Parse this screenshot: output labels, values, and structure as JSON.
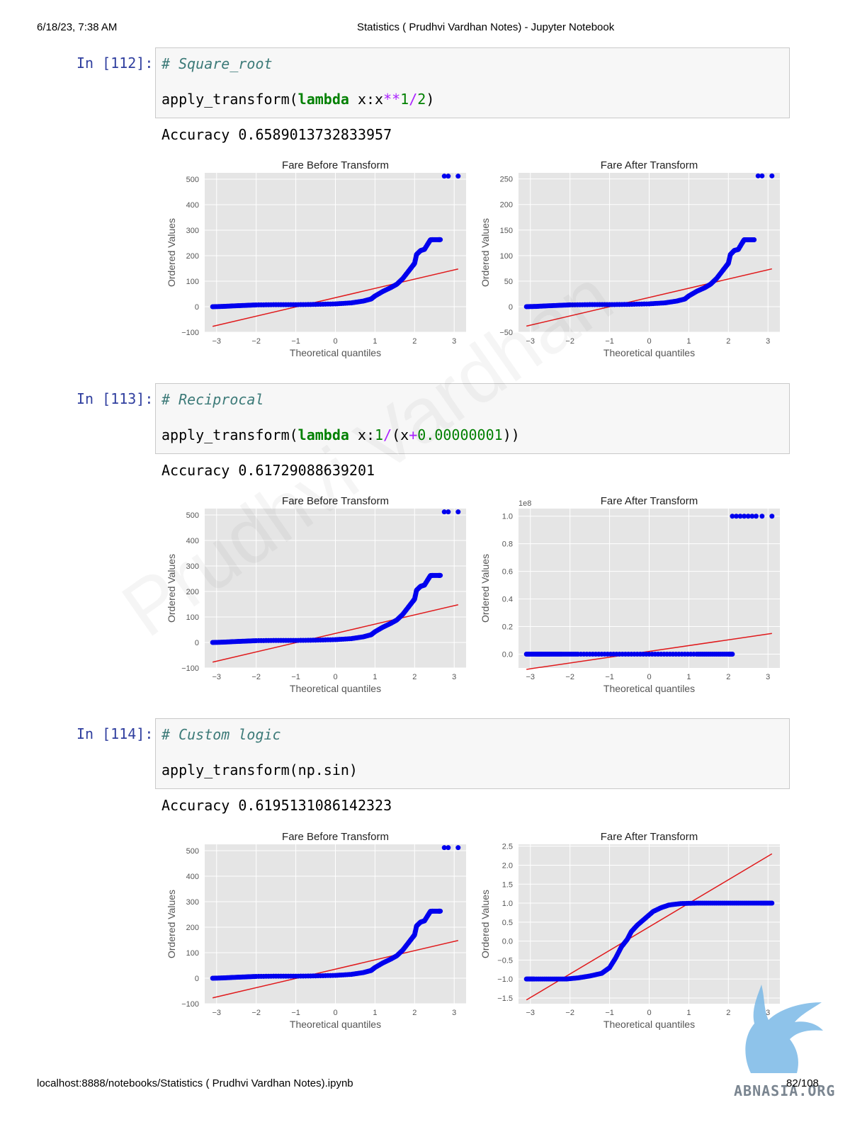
{
  "header": {
    "timestamp": "6/18/23, 7:38 AM",
    "title": "Statistics ( Prudhvi Vardhan Notes) - Jupyter Notebook"
  },
  "footer": {
    "url": "localhost:8888/notebooks/Statistics ( Prudhvi Vardhan Notes).ipynb",
    "page": "82/108"
  },
  "watermark": "Prudhvi Vardhan",
  "logo_text": "ABNASIA.ORG",
  "colors": {
    "points": "#0000ee",
    "fit_line": "#e0191b",
    "plot_bg": "#e5e5e5",
    "prompt": "#303f9f"
  },
  "cells": [
    {
      "prompt": "In [112]:",
      "comment": "# Square_root",
      "code": {
        "fn": "apply_transform(",
        "kw": "lambda",
        "a": " x:x",
        "op1": "**",
        "n1": "1",
        "op2": "/",
        "n2": "2",
        "end": ")"
      },
      "output": "Accuracy 0.6589013732833957"
    },
    {
      "prompt": "In [113]:",
      "comment": "# Reciprocal",
      "code": {
        "fn": "apply_transform(",
        "kw": "lambda",
        "a": " x:",
        "n1": "1",
        "op1": "/",
        "b": "(x",
        "op2": "+",
        "n2": "0.00000001",
        "end": "))"
      },
      "output": "Accuracy 0.61729088639201"
    },
    {
      "prompt": "In [114]:",
      "comment": "# Custom logic",
      "code": {
        "fn": "apply_transform(np.sin)"
      },
      "output": "Accuracy 0.6195131086142323"
    }
  ],
  "chart_data": [
    {
      "type": "scatter",
      "title": "Fare Before Transform",
      "xlabel": "Theoretical quantiles",
      "ylabel": "Ordered Values",
      "xlim": [
        -3.3,
        3.3
      ],
      "ylim": [
        -100,
        525
      ],
      "xticks": [
        -3,
        -2,
        -1,
        0,
        1,
        2,
        3
      ],
      "yticks": [
        -100,
        0,
        100,
        200,
        300,
        400,
        500
      ],
      "ytick_labels": [
        "−100",
        "0",
        "100",
        "200",
        "300",
        "400",
        "500"
      ],
      "offset_label": "",
      "curve": [
        [
          -3.1,
          0
        ],
        [
          -2.85,
          1
        ],
        [
          -2.6,
          3
        ],
        [
          -2.3,
          5
        ],
        [
          -2,
          7
        ],
        [
          -1.5,
          8
        ],
        [
          -1,
          8
        ],
        [
          -0.5,
          9
        ],
        [
          0,
          11
        ],
        [
          0.4,
          15
        ],
        [
          0.7,
          22
        ],
        [
          0.9,
          30
        ],
        [
          1,
          42
        ],
        [
          1.2,
          60
        ],
        [
          1.4,
          75
        ],
        [
          1.55,
          88
        ],
        [
          1.7,
          110
        ],
        [
          1.85,
          140
        ],
        [
          1.95,
          160
        ],
        [
          2,
          170
        ],
        [
          2.05,
          205
        ],
        [
          2.15,
          220
        ],
        [
          2.25,
          225
        ],
        [
          2.35,
          250
        ],
        [
          2.4,
          262
        ],
        [
          2.45,
          263
        ],
        [
          2.6,
          263
        ],
        [
          2.65,
          263
        ]
      ],
      "outliers": [
        [
          2.75,
          512
        ],
        [
          2.85,
          512
        ],
        [
          3.1,
          512
        ]
      ],
      "fit_line": [
        [
          -3.1,
          -77
        ],
        [
          3.1,
          148
        ]
      ]
    },
    {
      "type": "scatter",
      "title": "Fare After Transform",
      "xlabel": "Theoretical quantiles",
      "ylabel": "Ordered Values",
      "xlim": [
        -3.3,
        3.3
      ],
      "ylim": [
        -50,
        262
      ],
      "xticks": [
        -3,
        -2,
        -1,
        0,
        1,
        2,
        3
      ],
      "yticks": [
        -50,
        0,
        50,
        100,
        150,
        200,
        250
      ],
      "ytick_labels": [
        "−50",
        "0",
        "50",
        "100",
        "150",
        "200",
        "250"
      ],
      "offset_label": "",
      "curve": [
        [
          -3.1,
          0
        ],
        [
          -2.85,
          0.5
        ],
        [
          -2.6,
          1.5
        ],
        [
          -2.3,
          2.5
        ],
        [
          -2,
          3.5
        ],
        [
          -1.5,
          4
        ],
        [
          -1,
          4
        ],
        [
          -0.5,
          4.5
        ],
        [
          0,
          5.5
        ],
        [
          0.4,
          7.5
        ],
        [
          0.7,
          11
        ],
        [
          0.9,
          15
        ],
        [
          1,
          21
        ],
        [
          1.2,
          30
        ],
        [
          1.4,
          37
        ],
        [
          1.55,
          44
        ],
        [
          1.7,
          55
        ],
        [
          1.85,
          70
        ],
        [
          1.95,
          80
        ],
        [
          2,
          85
        ],
        [
          2.05,
          102
        ],
        [
          2.15,
          110
        ],
        [
          2.25,
          112
        ],
        [
          2.35,
          125
        ],
        [
          2.4,
          131
        ],
        [
          2.45,
          131
        ],
        [
          2.6,
          131
        ],
        [
          2.65,
          131
        ]
      ],
      "outliers": [
        [
          2.75,
          256
        ],
        [
          2.85,
          256
        ],
        [
          3.1,
          256
        ]
      ],
      "fit_line": [
        [
          -3.1,
          -38
        ],
        [
          3.1,
          74
        ]
      ]
    },
    {
      "type": "scatter",
      "title": "Fare Before Transform",
      "xlabel": "Theoretical quantiles",
      "ylabel": "Ordered Values",
      "xlim": [
        -3.3,
        3.3
      ],
      "ylim": [
        -100,
        525
      ],
      "xticks": [
        -3,
        -2,
        -1,
        0,
        1,
        2,
        3
      ],
      "yticks": [
        -100,
        0,
        100,
        200,
        300,
        400,
        500
      ],
      "ytick_labels": [
        "−100",
        "0",
        "100",
        "200",
        "300",
        "400",
        "500"
      ],
      "offset_label": "",
      "curve": [
        [
          -3.1,
          0
        ],
        [
          -2.85,
          1
        ],
        [
          -2.6,
          3
        ],
        [
          -2.3,
          5
        ],
        [
          -2,
          7
        ],
        [
          -1.5,
          8
        ],
        [
          -1,
          8
        ],
        [
          -0.5,
          9
        ],
        [
          0,
          11
        ],
        [
          0.4,
          15
        ],
        [
          0.7,
          22
        ],
        [
          0.9,
          30
        ],
        [
          1,
          42
        ],
        [
          1.2,
          60
        ],
        [
          1.4,
          75
        ],
        [
          1.55,
          88
        ],
        [
          1.7,
          110
        ],
        [
          1.85,
          140
        ],
        [
          1.95,
          160
        ],
        [
          2,
          170
        ],
        [
          2.05,
          205
        ],
        [
          2.15,
          220
        ],
        [
          2.25,
          225
        ],
        [
          2.35,
          250
        ],
        [
          2.4,
          262
        ],
        [
          2.45,
          263
        ],
        [
          2.6,
          263
        ],
        [
          2.65,
          263
        ]
      ],
      "outliers": [
        [
          2.75,
          512
        ],
        [
          2.85,
          512
        ],
        [
          3.1,
          512
        ]
      ],
      "fit_line": [
        [
          -3.1,
          -77
        ],
        [
          3.1,
          148
        ]
      ]
    },
    {
      "type": "scatter",
      "title": "Fare After Transform",
      "xlabel": "Theoretical quantiles",
      "ylabel": "Ordered Values",
      "xlim": [
        -3.3,
        3.3
      ],
      "ylim": [
        -0.1,
        1.055
      ],
      "xticks": [
        -3,
        -2,
        -1,
        0,
        1,
        2,
        3
      ],
      "yticks": [
        0,
        0.2,
        0.4,
        0.6,
        0.8,
        1.0
      ],
      "ytick_labels": [
        "0.0",
        "0.2",
        "0.4",
        "0.6",
        "0.8",
        "1.0"
      ],
      "offset_label": "1e8",
      "curve": [
        [
          -3.1,
          0
        ],
        [
          -2.85,
          0
        ],
        [
          -2.7,
          0
        ],
        [
          -2.5,
          0
        ],
        [
          -2.2,
          0
        ],
        [
          -1.8,
          0
        ],
        [
          -1.2,
          0
        ],
        [
          -0.6,
          0
        ],
        [
          0,
          0
        ],
        [
          0.6,
          0
        ],
        [
          1.2,
          0
        ],
        [
          1.6,
          0
        ],
        [
          2,
          0
        ],
        [
          2.1,
          0
        ]
      ],
      "outliers": [
        [
          2.1,
          1
        ],
        [
          2.2,
          1
        ],
        [
          2.3,
          1
        ],
        [
          2.4,
          1
        ],
        [
          2.5,
          1
        ],
        [
          2.6,
          1
        ],
        [
          2.7,
          1
        ],
        [
          2.85,
          1
        ],
        [
          3.1,
          1
        ]
      ],
      "fit_line": [
        [
          -3.1,
          -0.11
        ],
        [
          3.1,
          0.15
        ]
      ]
    },
    {
      "type": "scatter",
      "title": "Fare Before Transform",
      "xlabel": "Theoretical quantiles",
      "ylabel": "Ordered Values",
      "xlim": [
        -3.3,
        3.3
      ],
      "ylim": [
        -100,
        525
      ],
      "xticks": [
        -3,
        -2,
        -1,
        0,
        1,
        2,
        3
      ],
      "yticks": [
        -100,
        0,
        100,
        200,
        300,
        400,
        500
      ],
      "ytick_labels": [
        "−100",
        "0",
        "100",
        "200",
        "300",
        "400",
        "500"
      ],
      "offset_label": "",
      "curve": [
        [
          -3.1,
          0
        ],
        [
          -2.85,
          1
        ],
        [
          -2.6,
          3
        ],
        [
          -2.3,
          5
        ],
        [
          -2,
          7
        ],
        [
          -1.5,
          8
        ],
        [
          -1,
          8
        ],
        [
          -0.5,
          9
        ],
        [
          0,
          11
        ],
        [
          0.4,
          15
        ],
        [
          0.7,
          22
        ],
        [
          0.9,
          30
        ],
        [
          1,
          42
        ],
        [
          1.2,
          60
        ],
        [
          1.4,
          75
        ],
        [
          1.55,
          88
        ],
        [
          1.7,
          110
        ],
        [
          1.85,
          140
        ],
        [
          1.95,
          160
        ],
        [
          2,
          170
        ],
        [
          2.05,
          205
        ],
        [
          2.15,
          220
        ],
        [
          2.25,
          225
        ],
        [
          2.35,
          250
        ],
        [
          2.4,
          262
        ],
        [
          2.45,
          263
        ],
        [
          2.6,
          263
        ],
        [
          2.65,
          263
        ]
      ],
      "outliers": [
        [
          2.75,
          512
        ],
        [
          2.85,
          512
        ],
        [
          3.1,
          512
        ]
      ],
      "fit_line": [
        [
          -3.1,
          -77
        ],
        [
          3.1,
          148
        ]
      ]
    },
    {
      "type": "scatter",
      "title": "Fare After Transform",
      "xlabel": "Theoretical quantiles",
      "ylabel": "Ordered Values",
      "xlim": [
        -3.3,
        3.3
      ],
      "ylim": [
        -1.65,
        2.55
      ],
      "xticks": [
        -3,
        -2,
        -1,
        0,
        1,
        2,
        3
      ],
      "yticks": [
        -1.5,
        -1.0,
        -0.5,
        0.0,
        0.5,
        1.0,
        1.5,
        2.0,
        2.5
      ],
      "ytick_labels": [
        "−1.5",
        "−1.0",
        "−0.5",
        "0.0",
        "0.5",
        "1.0",
        "1.5",
        "2.0",
        "2.5"
      ],
      "offset_label": "",
      "curve": [
        [
          -3.1,
          -1
        ],
        [
          -2.9,
          -1
        ],
        [
          -2.5,
          -1
        ],
        [
          -2.1,
          -1
        ],
        [
          -1.8,
          -0.97
        ],
        [
          -1.5,
          -0.92
        ],
        [
          -1.2,
          -0.85
        ],
        [
          -1.0,
          -0.7
        ],
        [
          -0.85,
          -0.45
        ],
        [
          -0.7,
          -0.15
        ],
        [
          -0.55,
          0.05
        ],
        [
          -0.45,
          0.25
        ],
        [
          -0.3,
          0.42
        ],
        [
          -0.1,
          0.6
        ],
        [
          0.1,
          0.78
        ],
        [
          0.3,
          0.88
        ],
        [
          0.5,
          0.95
        ],
        [
          0.8,
          0.99
        ],
        [
          1.2,
          1
        ],
        [
          1.6,
          1
        ],
        [
          2.0,
          1
        ],
        [
          2.4,
          1
        ],
        [
          2.8,
          1
        ],
        [
          3.1,
          1
        ]
      ],
      "outliers": [],
      "fit_line": [
        [
          -3.1,
          -1.55
        ],
        [
          3.1,
          2.3
        ]
      ]
    }
  ]
}
